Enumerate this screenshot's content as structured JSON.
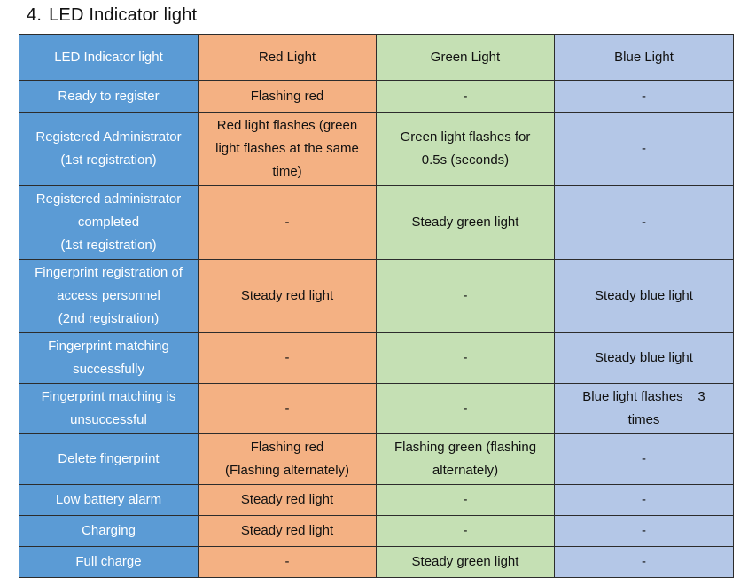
{
  "heading": {
    "number": "4.",
    "title": "LED Indicator light"
  },
  "colors": {
    "label": "#5b9bd5",
    "red": "#f4b183",
    "green": "#c5e0b4",
    "blue": "#b4c7e7"
  },
  "table": {
    "header": [
      "LED Indicator light",
      "Red Light",
      "Green Light",
      "Blue Light"
    ],
    "rows": [
      {
        "label": [
          "Ready to register"
        ],
        "red": [
          "Flashing red"
        ],
        "green": [
          "-"
        ],
        "blue": [
          "-"
        ]
      },
      {
        "label": [
          "Registered Administrator",
          "(1st registration)"
        ],
        "red": [
          "Red light flashes (green",
          "light flashes at the same",
          "time)"
        ],
        "green": [
          "Green light flashes for",
          "0.5s (seconds)"
        ],
        "blue": [
          "-"
        ]
      },
      {
        "label": [
          "Registered administrator",
          "completed",
          "(1st registration)"
        ],
        "red": [
          "-"
        ],
        "green": [
          "Steady green light"
        ],
        "blue": [
          "-"
        ]
      },
      {
        "label": [
          "Fingerprint registration of",
          "access personnel",
          "(2nd registration)"
        ],
        "red": [
          "Steady red light"
        ],
        "green": [
          "-"
        ],
        "blue": [
          "Steady blue light"
        ]
      },
      {
        "label": [
          "Fingerprint matching",
          "successfully"
        ],
        "red": [
          "-"
        ],
        "green": [
          "-"
        ],
        "blue": [
          "Steady blue light"
        ]
      },
      {
        "label": [
          "Fingerprint matching is",
          "unsuccessful"
        ],
        "red": [
          "-"
        ],
        "green": [
          "-"
        ],
        "blue": [
          "Blue light flashes    3",
          "times"
        ]
      },
      {
        "label": [
          "Delete fingerprint"
        ],
        "red": [
          "Flashing red",
          "(Flashing alternately)"
        ],
        "green": [
          "Flashing green (flashing",
          "alternately)"
        ],
        "blue": [
          "-"
        ]
      },
      {
        "label": [
          "Low battery alarm"
        ],
        "red": [
          "Steady red light"
        ],
        "green": [
          "-"
        ],
        "blue": [
          "-"
        ]
      },
      {
        "label": [
          "Charging"
        ],
        "red": [
          "Steady red light"
        ],
        "green": [
          "-"
        ],
        "blue": [
          "-"
        ]
      },
      {
        "label": [
          "Full charge"
        ],
        "red": [
          "-"
        ],
        "green": [
          "Steady green light"
        ],
        "blue": [
          "-"
        ]
      }
    ]
  }
}
